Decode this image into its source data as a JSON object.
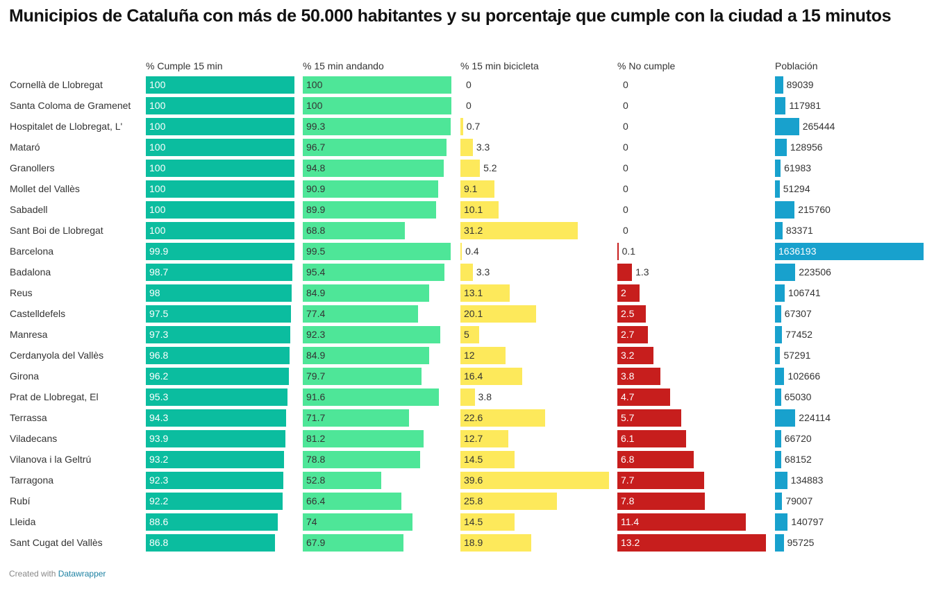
{
  "chart_data": {
    "type": "table",
    "title": "Municipios de Cataluña con más de 50.000 habitantes y su porcentaje que cumple con la ciudad a 15 minutos",
    "columns": [
      {
        "key": "cumple",
        "label": "% Cumple 15 min",
        "color": "#0bbd9f"
      },
      {
        "key": "andando",
        "label": "% 15 min andando",
        "color": "#4ee698"
      },
      {
        "key": "bici",
        "label": "% 15 min bicicleta",
        "color": "#fde95b"
      },
      {
        "key": "no",
        "label": "% No cumple",
        "color": "#c71e1d"
      },
      {
        "key": "pob",
        "label": "Población",
        "color": "#18a1cd"
      }
    ],
    "rows": [
      {
        "name": "Cornellà de Llobregat",
        "cumple": 100,
        "andando": 100,
        "bici": 0,
        "no": 0,
        "pob": 89039
      },
      {
        "name": "Santa Coloma de Gramenet",
        "cumple": 100,
        "andando": 100,
        "bici": 0,
        "no": 0,
        "pob": 117981
      },
      {
        "name": "Hospitalet de Llobregat, L'",
        "cumple": 100,
        "andando": 99.3,
        "bici": 0.7,
        "no": 0,
        "pob": 265444
      },
      {
        "name": "Mataró",
        "cumple": 100,
        "andando": 96.7,
        "bici": 3.3,
        "no": 0,
        "pob": 128956
      },
      {
        "name": "Granollers",
        "cumple": 100,
        "andando": 94.8,
        "bici": 5.2,
        "no": 0,
        "pob": 61983
      },
      {
        "name": "Mollet del Vallès",
        "cumple": 100,
        "andando": 90.9,
        "bici": 9.1,
        "no": 0,
        "pob": 51294
      },
      {
        "name": "Sabadell",
        "cumple": 100,
        "andando": 89.9,
        "bici": 10.1,
        "no": 0,
        "pob": 215760
      },
      {
        "name": "Sant Boi de Llobregat",
        "cumple": 100,
        "andando": 68.8,
        "bici": 31.2,
        "no": 0,
        "pob": 83371
      },
      {
        "name": "Barcelona",
        "cumple": 99.9,
        "andando": 99.5,
        "bici": 0.4,
        "no": 0.1,
        "pob": 1636193
      },
      {
        "name": "Badalona",
        "cumple": 98.7,
        "andando": 95.4,
        "bici": 3.3,
        "no": 1.3,
        "pob": 223506
      },
      {
        "name": "Reus",
        "cumple": 98,
        "andando": 84.9,
        "bici": 13.1,
        "no": 2,
        "pob": 106741
      },
      {
        "name": "Castelldefels",
        "cumple": 97.5,
        "andando": 77.4,
        "bici": 20.1,
        "no": 2.5,
        "pob": 67307
      },
      {
        "name": "Manresa",
        "cumple": 97.3,
        "andando": 92.3,
        "bici": 5,
        "no": 2.7,
        "pob": 77452
      },
      {
        "name": "Cerdanyola del Vallès",
        "cumple": 96.8,
        "andando": 84.9,
        "bici": 12,
        "no": 3.2,
        "pob": 57291
      },
      {
        "name": "Girona",
        "cumple": 96.2,
        "andando": 79.7,
        "bici": 16.4,
        "no": 3.8,
        "pob": 102666
      },
      {
        "name": "Prat de Llobregat, El",
        "cumple": 95.3,
        "andando": 91.6,
        "bici": 3.8,
        "no": 4.7,
        "pob": 65030
      },
      {
        "name": "Terrassa",
        "cumple": 94.3,
        "andando": 71.7,
        "bici": 22.6,
        "no": 5.7,
        "pob": 224114
      },
      {
        "name": "Viladecans",
        "cumple": 93.9,
        "andando": 81.2,
        "bici": 12.7,
        "no": 6.1,
        "pob": 66720
      },
      {
        "name": "Vilanova i la Geltrú",
        "cumple": 93.2,
        "andando": 78.8,
        "bici": 14.5,
        "no": 6.8,
        "pob": 68152
      },
      {
        "name": "Tarragona",
        "cumple": 92.3,
        "andando": 52.8,
        "bici": 39.6,
        "no": 7.7,
        "pob": 134883
      },
      {
        "name": "Rubí",
        "cumple": 92.2,
        "andando": 66.4,
        "bici": 25.8,
        "no": 7.8,
        "pob": 79007
      },
      {
        "name": "Lleida",
        "cumple": 88.6,
        "andando": 74,
        "bici": 14.5,
        "no": 11.4,
        "pob": 140797
      },
      {
        "name": "Sant Cugat del Vallès",
        "cumple": 86.8,
        "andando": 67.9,
        "bici": 18.9,
        "no": 13.2,
        "pob": 95725
      }
    ]
  },
  "footer": {
    "prefix": "Created with",
    "link": "Datawrapper"
  }
}
